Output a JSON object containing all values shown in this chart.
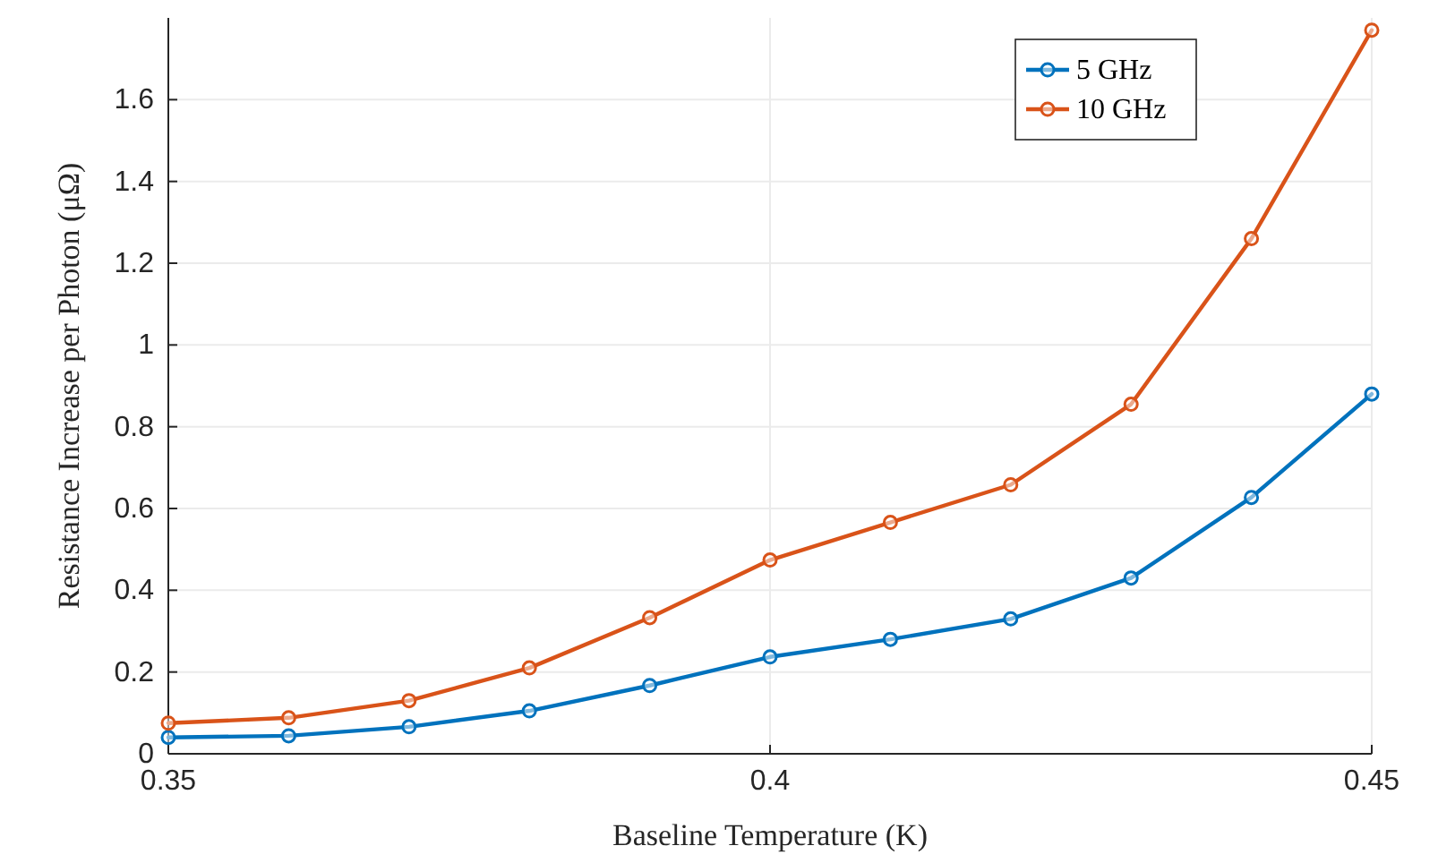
{
  "chart_data": {
    "type": "line",
    "xlabel": "Baseline Temperature (K)",
    "ylabel": "Resistance Increase per Photon (μΩ)",
    "x": [
      0.35,
      0.36,
      0.37,
      0.38,
      0.39,
      0.4,
      0.41,
      0.42,
      0.43,
      0.44,
      0.45
    ],
    "series": [
      {
        "name": "5 GHz",
        "color": "#0072bd",
        "values": [
          0.04,
          0.044,
          0.066,
          0.105,
          0.167,
          0.237,
          0.28,
          0.33,
          0.43,
          0.627,
          0.88
        ]
      },
      {
        "name": "10 GHz",
        "color": "#d95319",
        "values": [
          0.075,
          0.088,
          0.13,
          0.21,
          0.333,
          0.474,
          0.566,
          0.658,
          0.855,
          1.26,
          1.77
        ]
      }
    ],
    "xlim": [
      0.35,
      0.45
    ],
    "xticks": [
      0.35,
      0.4,
      0.45
    ],
    "ylim": [
      0,
      1.8
    ],
    "yticks": [
      0,
      0.2,
      0.4,
      0.6,
      0.8,
      1,
      1.2,
      1.4,
      1.6
    ],
    "grid": true,
    "legend": "top right",
    "marker": "circle",
    "line_style": "solid"
  }
}
